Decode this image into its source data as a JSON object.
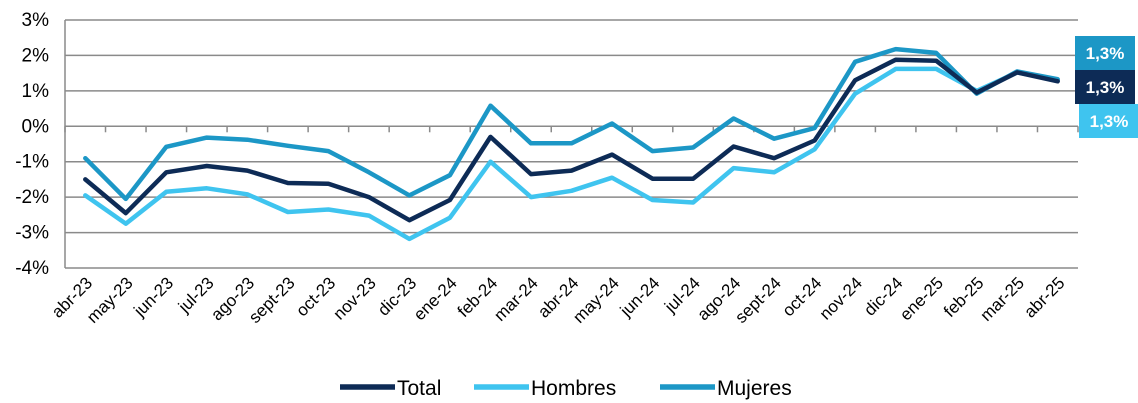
{
  "chart_data": {
    "type": "line",
    "categories": [
      "abr-23",
      "may-23",
      "jun-23",
      "jul-23",
      "ago-23",
      "sept-23",
      "oct-23",
      "nov-23",
      "dic-23",
      "ene-24",
      "feb-24",
      "mar-24",
      "abr-24",
      "may-24",
      "jun-24",
      "jul-24",
      "ago-24",
      "sept-24",
      "oct-24",
      "nov-24",
      "dic-24",
      "ene-25",
      "feb-25",
      "mar-25",
      "abr-25"
    ],
    "series": [
      {
        "name": "Total",
        "color": "#0d2b56",
        "values": [
          -1.5,
          -2.45,
          -1.3,
          -1.12,
          -1.25,
          -1.6,
          -1.62,
          -2.0,
          -2.65,
          -2.08,
          -0.3,
          -1.35,
          -1.25,
          -0.8,
          -1.48,
          -1.48,
          -0.57,
          -0.9,
          -0.4,
          1.3,
          1.88,
          1.85,
          0.95,
          1.52,
          1.27
        ]
      },
      {
        "name": "Hombres",
        "color": "#3fc4ef",
        "values": [
          -1.95,
          -2.75,
          -1.85,
          -1.75,
          -1.92,
          -2.42,
          -2.35,
          -2.52,
          -3.18,
          -2.58,
          -1.0,
          -2.0,
          -1.82,
          -1.45,
          -2.08,
          -2.15,
          -1.18,
          -1.3,
          -0.65,
          0.92,
          1.62,
          1.62,
          1.0,
          1.52,
          1.3
        ]
      },
      {
        "name": "Mujeres",
        "color": "#1c97c6",
        "values": [
          -0.9,
          -2.05,
          -0.58,
          -0.32,
          -0.38,
          -0.55,
          -0.7,
          -1.3,
          -1.95,
          -1.38,
          0.58,
          -0.48,
          -0.48,
          0.08,
          -0.7,
          -0.6,
          0.22,
          -0.35,
          -0.05,
          1.82,
          2.18,
          2.07,
          0.92,
          1.55,
          1.33
        ]
      }
    ],
    "y_ticks": [
      "3%",
      "2%",
      "1%",
      "0%",
      "-1%",
      "-2%",
      "-3%",
      "-4%"
    ],
    "ylim": [
      -4,
      3
    ],
    "grid": true,
    "legend_position": "bottom",
    "end_labels": [
      {
        "series": "Mujeres",
        "text": "1,3%",
        "color": "#1c97c6"
      },
      {
        "series": "Total",
        "text": "1,3%",
        "color": "#0d2b56"
      },
      {
        "series": "Hombres",
        "text": "1,3%",
        "color": "#3fc4ef"
      }
    ]
  }
}
